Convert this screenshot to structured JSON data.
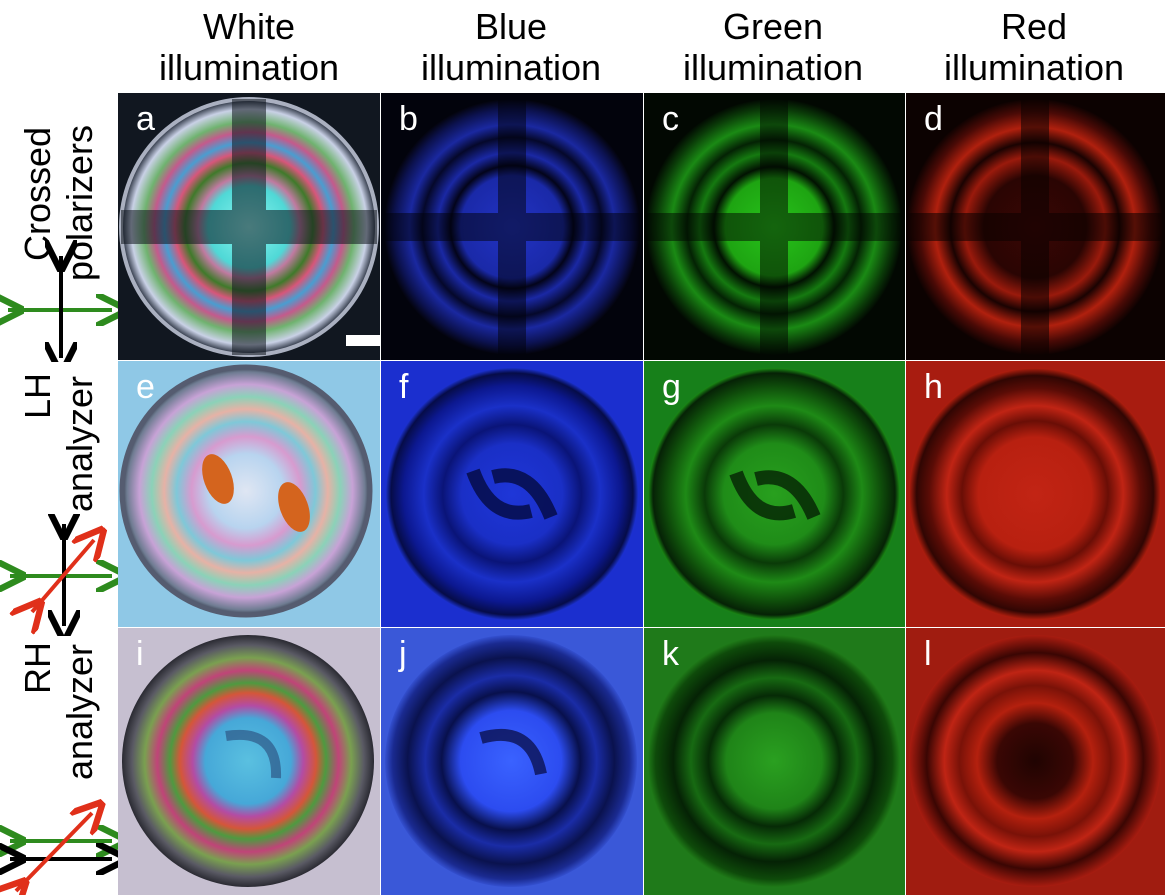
{
  "columns": [
    {
      "line1": "White",
      "line2": "illumination"
    },
    {
      "line1": "Blue",
      "line2": "illumination"
    },
    {
      "line1": "Green",
      "line2": "illumination"
    },
    {
      "line1": "Red",
      "line2": "illumination"
    }
  ],
  "rows": [
    {
      "line1": "Crossed",
      "line2": "polarizers"
    },
    {
      "line1": "LH",
      "line2": "analyzer"
    },
    {
      "line1": "RH",
      "line2": "analyzer"
    }
  ],
  "panels": [
    "a",
    "b",
    "c",
    "d",
    "e",
    "f",
    "g",
    "h",
    "i",
    "j",
    "k",
    "l"
  ],
  "colors": {
    "blue": "#1b2fd6",
    "green": "#1a8a1a",
    "red": "#c02010",
    "arrow_green": "#2e8b1e",
    "arrow_red": "#e0301a",
    "arrow_black": "#000000"
  }
}
